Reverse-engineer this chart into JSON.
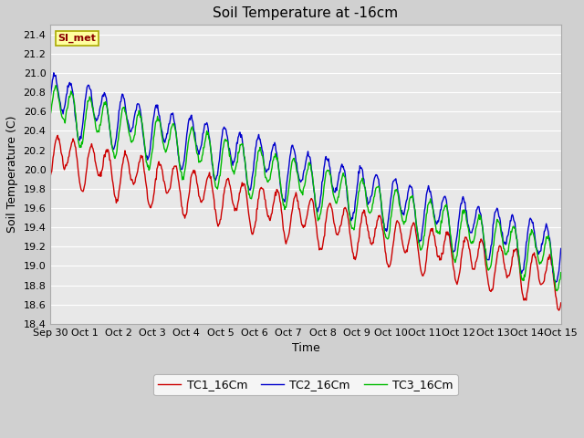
{
  "title": "Soil Temperature at -16cm",
  "xlabel": "Time",
  "ylabel": "Soil Temperature (C)",
  "ylim": [
    18.4,
    21.5
  ],
  "fig_bg_color": "#d0d0d0",
  "plot_bg_color": "#e8e8e8",
  "grid_color": "#ffffff",
  "legend_label": "SI_met",
  "series_colors": {
    "TC1_16Cm": "#cc0000",
    "TC2_16Cm": "#0000cc",
    "TC3_16Cm": "#00bb00"
  },
  "legend_labels": [
    "TC1_16Cm",
    "TC2_16Cm",
    "TC3_16Cm"
  ],
  "x_tick_labels": [
    "Sep 30",
    "Oct 1",
    "Oct 2",
    "Oct 3",
    "Oct 4",
    "Oct 5",
    "Oct 6",
    "Oct 7",
    "Oct 8",
    "Oct 9",
    "Oct 10",
    "Oct 11",
    "Oct 12",
    "Oct 13",
    "Oct 14",
    "Oct 15"
  ],
  "n_days": 16,
  "title_fontsize": 11,
  "axis_fontsize": 9,
  "tick_fontsize": 8,
  "linewidth": 1.0
}
